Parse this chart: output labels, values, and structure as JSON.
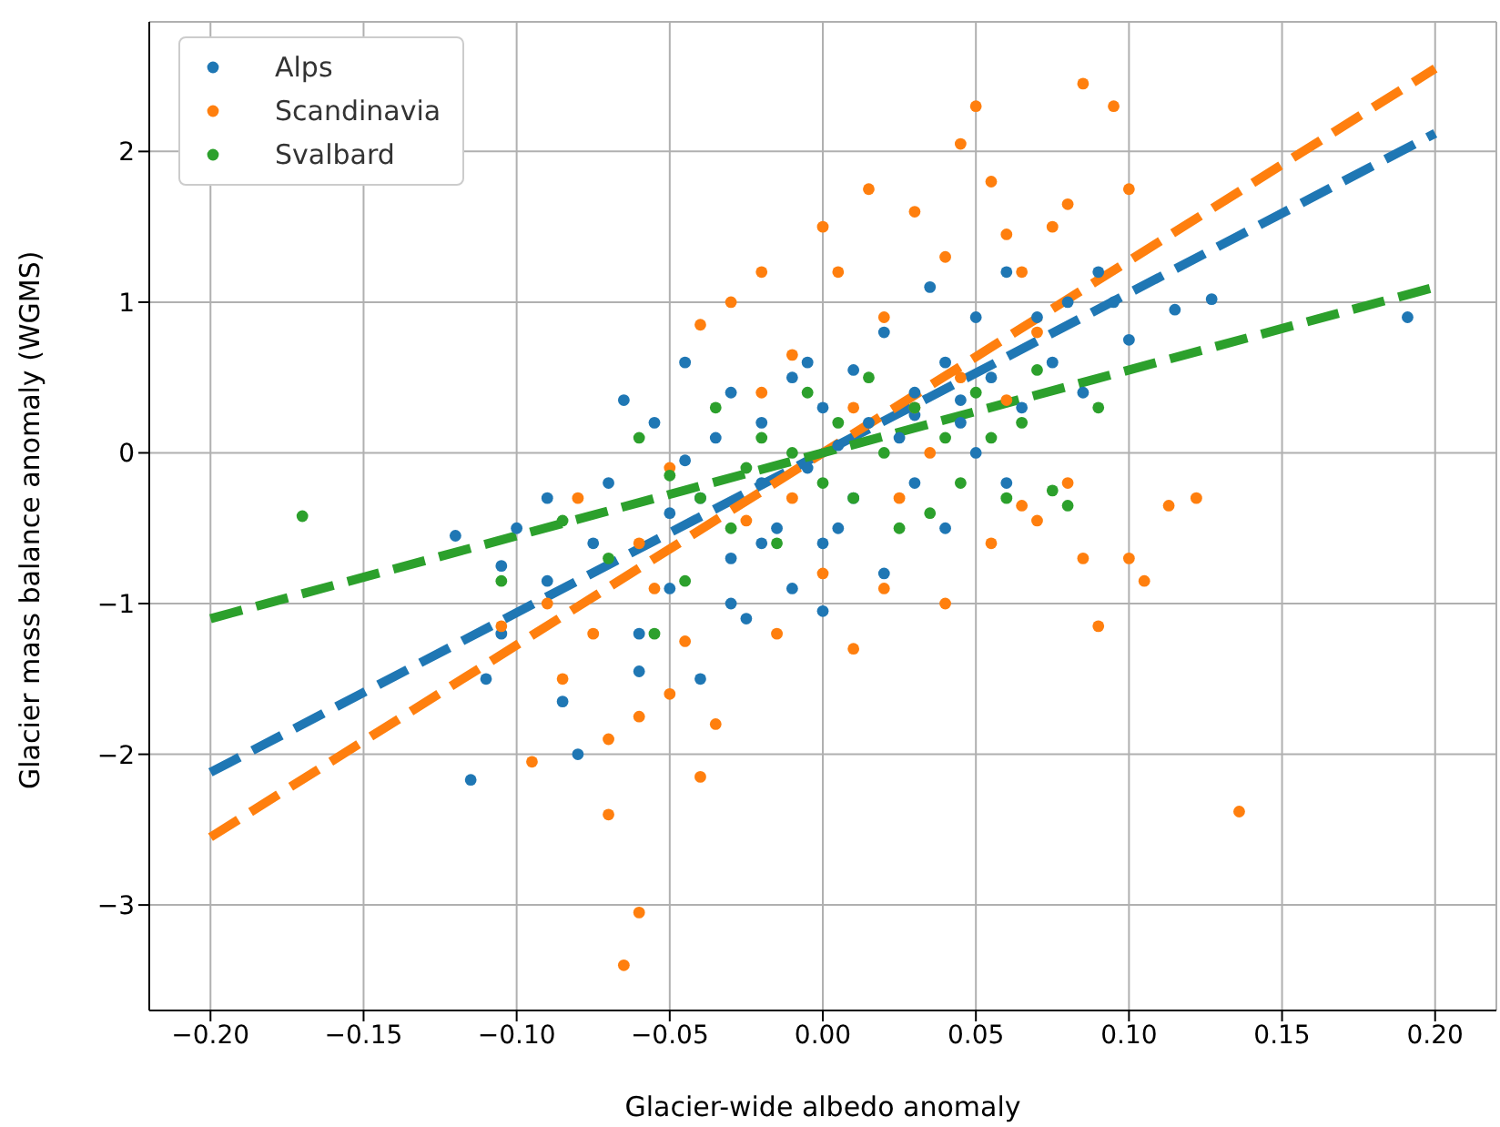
{
  "chart_data": {
    "type": "scatter",
    "xlabel": "Glacier-wide albedo anomaly",
    "ylabel": "Glacier mass balance anomaly (WGMS)",
    "xlim": [
      -0.22,
      0.22
    ],
    "ylim": [
      -3.7,
      2.86
    ],
    "xticks": [
      {
        "value": -0.2,
        "label": "−0.20"
      },
      {
        "value": -0.15,
        "label": "−0.15"
      },
      {
        "value": -0.1,
        "label": "−0.10"
      },
      {
        "value": -0.05,
        "label": "−0.05"
      },
      {
        "value": 0,
        "label": "0.00"
      },
      {
        "value": 0.05,
        "label": "0.05"
      },
      {
        "value": 0.1,
        "label": "0.10"
      },
      {
        "value": 0.15,
        "label": "0.15"
      },
      {
        "value": 0.2,
        "label": "0.20"
      }
    ],
    "yticks": [
      {
        "value": -3,
        "label": "−3"
      },
      {
        "value": -2,
        "label": "−2"
      },
      {
        "value": -1,
        "label": "−1"
      },
      0,
      1,
      2
    ],
    "grid": true,
    "legend": "top left",
    "marker": "circle",
    "series": [
      {
        "name": "Alps",
        "color": "#1f77b4",
        "x": [
          -0.115,
          -0.11,
          -0.105,
          -0.12,
          -0.1,
          -0.09,
          -0.085,
          -0.08,
          -0.075,
          -0.07,
          -0.065,
          -0.06,
          -0.055,
          -0.05,
          -0.05,
          -0.045,
          -0.04,
          -0.04,
          -0.035,
          -0.03,
          -0.03,
          -0.025,
          -0.02,
          -0.02,
          -0.015,
          -0.01,
          -0.01,
          -0.005,
          0,
          0,
          0.005,
          0.01,
          0.01,
          0.015,
          0.02,
          0.02,
          0.025,
          0.03,
          0.03,
          0.035,
          0.04,
          0.04,
          0.045,
          0.05,
          0.05,
          0.055,
          0.06,
          0.06,
          0.065,
          0.07,
          0.075,
          0.08,
          0.085,
          0.09,
          0.095,
          0.1,
          0.115,
          0.127,
          0.191,
          -0.06,
          -0.03,
          0,
          -0.005,
          -0.045,
          -0.09,
          -0.105,
          0.005,
          0.03,
          -0.02,
          0.045
        ],
        "values": [
          -2.17,
          -1.5,
          -0.75,
          -0.55,
          -0.5,
          -0.3,
          -1.65,
          -2.0,
          -0.6,
          -0.2,
          0.35,
          -1.2,
          0.2,
          -0.4,
          -0.9,
          0.6,
          -1.5,
          -0.3,
          0.1,
          -0.7,
          0.4,
          -1.1,
          -0.2,
          0.2,
          -0.5,
          -0.9,
          0.5,
          -0.1,
          0.3,
          -0.6,
          0.05,
          0.55,
          -0.3,
          0.2,
          -0.8,
          0.8,
          0.1,
          0.4,
          -0.2,
          1.1,
          0.6,
          -0.5,
          0.2,
          0.9,
          0,
          0.5,
          1.2,
          -0.2,
          0.3,
          0.9,
          0.6,
          1.0,
          0.4,
          1.2,
          1.0,
          0.75,
          0.95,
          1.02,
          0.9,
          -1.45,
          -1.0,
          -1.05,
          0.6,
          -0.05,
          -0.85,
          -1.2,
          -0.5,
          0.25,
          -0.6,
          0.35
        ]
      },
      {
        "name": "Scandinavia",
        "color": "#ff7f0e",
        "x": [
          -0.095,
          -0.105,
          -0.085,
          -0.07,
          -0.065,
          -0.06,
          -0.07,
          -0.06,
          -0.05,
          -0.045,
          -0.04,
          -0.035,
          -0.08,
          -0.09,
          -0.06,
          -0.055,
          -0.04,
          -0.03,
          -0.02,
          -0.025,
          -0.015,
          -0.01,
          0,
          0,
          0.005,
          0.01,
          0.015,
          0.02,
          0.025,
          0.03,
          0.035,
          0.04,
          0.045,
          0.05,
          0.055,
          0.06,
          0.065,
          0.07,
          0.075,
          0.085,
          0.08,
          0.095,
          0.1,
          0.065,
          0.08,
          0.085,
          0.09,
          0.105,
          0.113,
          0.122,
          0.136,
          0.045,
          0.055,
          0.02,
          0.01,
          -0.01,
          -0.02,
          0.03,
          0.06,
          -0.05,
          0.07,
          0.1,
          -0.075,
          0.04
        ],
        "values": [
          -2.05,
          -1.15,
          -1.5,
          -2.4,
          -3.4,
          -3.05,
          -1.9,
          -1.75,
          -1.6,
          -1.25,
          -2.15,
          -1.8,
          -0.3,
          -1.0,
          -0.6,
          -0.9,
          0.85,
          1.0,
          1.2,
          -0.45,
          -1.2,
          0.65,
          1.5,
          -0.8,
          1.2,
          0.3,
          1.75,
          0.9,
          -0.3,
          1.6,
          0,
          1.3,
          2.05,
          2.3,
          1.8,
          1.45,
          1.2,
          0.8,
          1.5,
          2.45,
          1.65,
          2.3,
          1.75,
          -0.35,
          -0.2,
          -0.7,
          -1.15,
          -0.85,
          -0.35,
          -0.3,
          -2.38,
          0.5,
          -0.6,
          -0.9,
          -1.3,
          -0.3,
          0.4,
          0.3,
          0.35,
          -0.1,
          -0.45,
          -0.7,
          -1.2,
          -1.0
        ]
      },
      {
        "name": "Svalbard",
        "color": "#2ca02c",
        "x": [
          -0.17,
          -0.105,
          -0.085,
          -0.07,
          -0.06,
          -0.055,
          -0.05,
          -0.04,
          -0.035,
          -0.03,
          -0.025,
          -0.02,
          -0.015,
          -0.01,
          -0.005,
          0,
          0.005,
          0.01,
          0.015,
          0.02,
          0.025,
          0.03,
          0.035,
          0.04,
          0.045,
          0.05,
          0.055,
          0.06,
          0.065,
          0.075,
          0.08,
          0.09,
          0.07,
          -0.045
        ],
        "values": [
          -0.42,
          -0.85,
          -0.45,
          -0.7,
          0.1,
          -1.2,
          -0.15,
          -0.3,
          0.3,
          -0.5,
          -0.1,
          0.1,
          -0.6,
          0,
          0.4,
          -0.2,
          0.2,
          -0.3,
          0.5,
          0,
          -0.5,
          0.3,
          -0.4,
          0.1,
          -0.2,
          0.4,
          0.1,
          -0.3,
          0.2,
          -0.25,
          -0.35,
          0.3,
          0.55,
          -0.85
        ]
      },
      {
        "type": "line",
        "color": "#1f77b4",
        "line_style": "dashed",
        "marker": "none",
        "x": [
          -0.2,
          0.2
        ],
        "values": [
          -2.12,
          2.12
        ]
      },
      {
        "type": "line",
        "color": "#ff7f0e",
        "line_style": "dashed",
        "marker": "none",
        "x": [
          -0.2,
          0.2
        ],
        "values": [
          -2.55,
          2.55
        ]
      },
      {
        "type": "line",
        "color": "#2ca02c",
        "line_style": "dashed",
        "marker": "none",
        "x": [
          -0.2,
          0.2
        ],
        "values": [
          -1.1,
          1.1
        ]
      }
    ]
  }
}
